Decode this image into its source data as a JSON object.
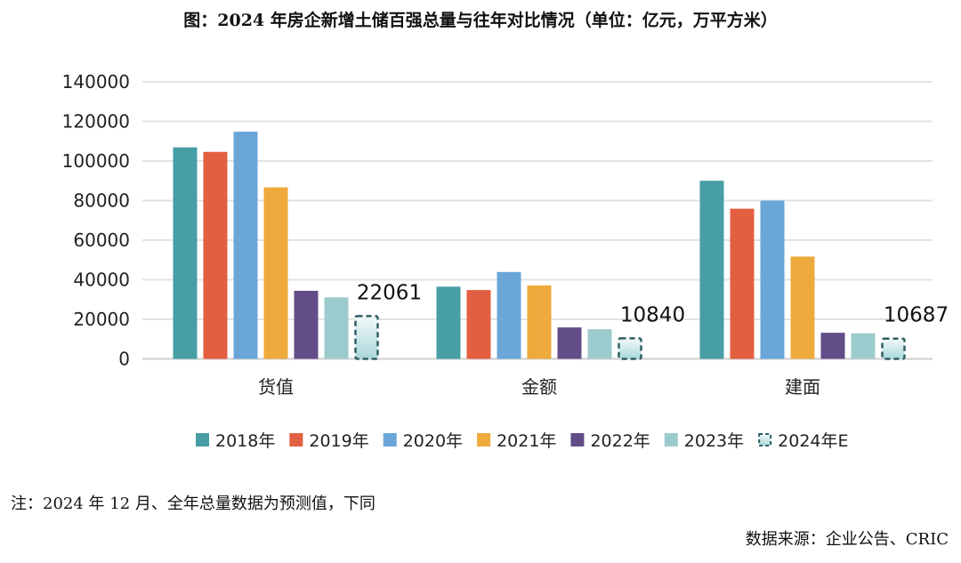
{
  "title": "图：2024 年房企新增土储百强总量与往年对比情况（单位：亿元，万平方米）",
  "note": "注：2024 年 12 月、全年总量数据为预测值，下同",
  "source": "数据来源：企业公告、CRIC",
  "chart_data": {
    "type": "bar",
    "categories": [
      "货值",
      "金额",
      "建面"
    ],
    "ylim": [
      0,
      140000
    ],
    "yticks": [
      0,
      20000,
      40000,
      60000,
      80000,
      100000,
      120000,
      140000
    ],
    "grid": true,
    "legend_position": "bottom",
    "series": [
      {
        "name": "2018年",
        "color": "#479ea5",
        "values": [
          106900,
          36500,
          90000
        ]
      },
      {
        "name": "2019年",
        "color": "#e35f41",
        "values": [
          104600,
          34800,
          75900
        ]
      },
      {
        "name": "2020年",
        "color": "#6aa6d8",
        "values": [
          114800,
          43900,
          80000
        ]
      },
      {
        "name": "2021年",
        "color": "#eeaa3c",
        "values": [
          86700,
          37100,
          51700
        ]
      },
      {
        "name": "2022年",
        "color": "#634d89",
        "values": [
          34400,
          15900,
          13200
        ]
      },
      {
        "name": "2023年",
        "color": "#9ccbcd",
        "values": [
          31100,
          15000,
          12900
        ]
      },
      {
        "name": "2024年E",
        "color": "#2e5f62",
        "style": "dashed",
        "values": [
          22061,
          10840,
          10687
        ],
        "labels": [
          "22061",
          "10840",
          "10687"
        ]
      }
    ]
  }
}
